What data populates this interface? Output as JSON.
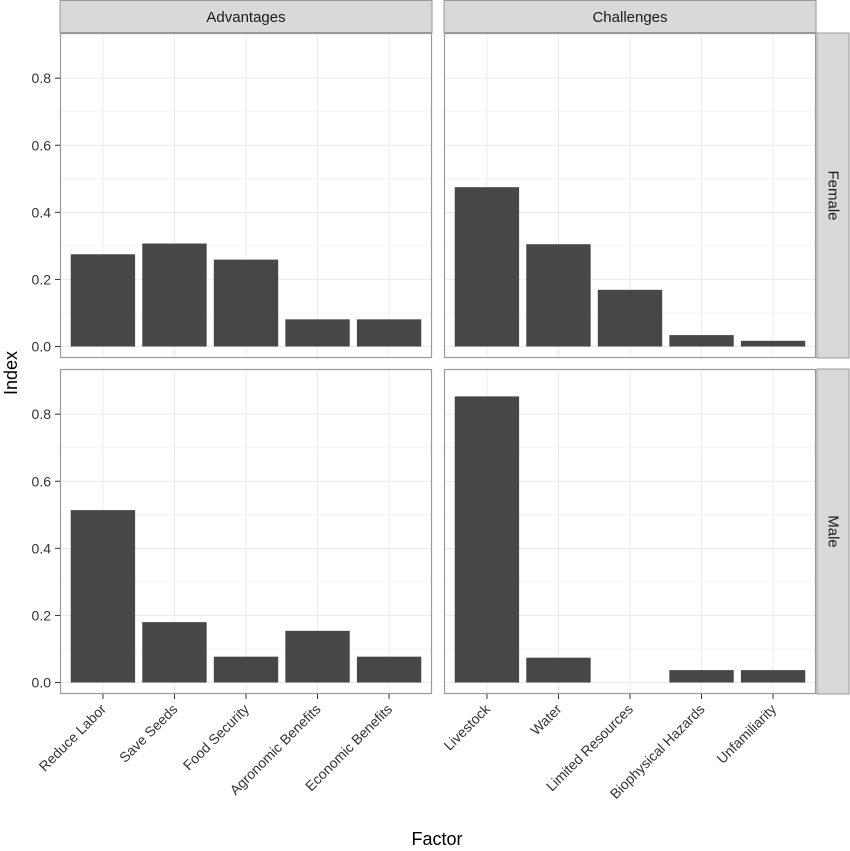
{
  "chart_data": {
    "type": "bar",
    "xlabel": "Factor",
    "ylabel": "Index",
    "ylim": [
      0,
      0.9
    ],
    "yticks": [
      0.0,
      0.2,
      0.4,
      0.6,
      0.8
    ],
    "ytick_labels": [
      "0.0",
      "0.2",
      "0.4",
      "0.6",
      "0.8"
    ],
    "grid": true,
    "colors": {
      "bar": "#474747",
      "strip": "#d9d9d9",
      "panel_border": "#999999",
      "grid": "#ebebeb"
    },
    "columns": [
      {
        "name": "Advantages",
        "categories": [
          "Reduce Labor",
          "Save Seeds",
          "Food Security",
          "Agronomic Benefits",
          "Economic Benefits"
        ]
      },
      {
        "name": "Challenges",
        "categories": [
          "Livestock",
          "Water",
          "Limited Resources",
          "Biophysical Hazards",
          "Unfamiliarity"
        ]
      }
    ],
    "rows": [
      "Female",
      "Male"
    ],
    "panels": [
      {
        "column": "Advantages",
        "row": "Female",
        "values": [
          0.275,
          0.307,
          0.259,
          0.081,
          0.081
        ]
      },
      {
        "column": "Challenges",
        "row": "Female",
        "values": [
          0.475,
          0.305,
          0.169,
          0.034,
          0.017
        ]
      },
      {
        "column": "Advantages",
        "row": "Male",
        "values": [
          0.514,
          0.18,
          0.077,
          0.154,
          0.077
        ]
      },
      {
        "column": "Challenges",
        "row": "Male",
        "values": [
          0.853,
          0.074,
          0.0,
          0.037,
          0.037
        ]
      }
    ]
  }
}
